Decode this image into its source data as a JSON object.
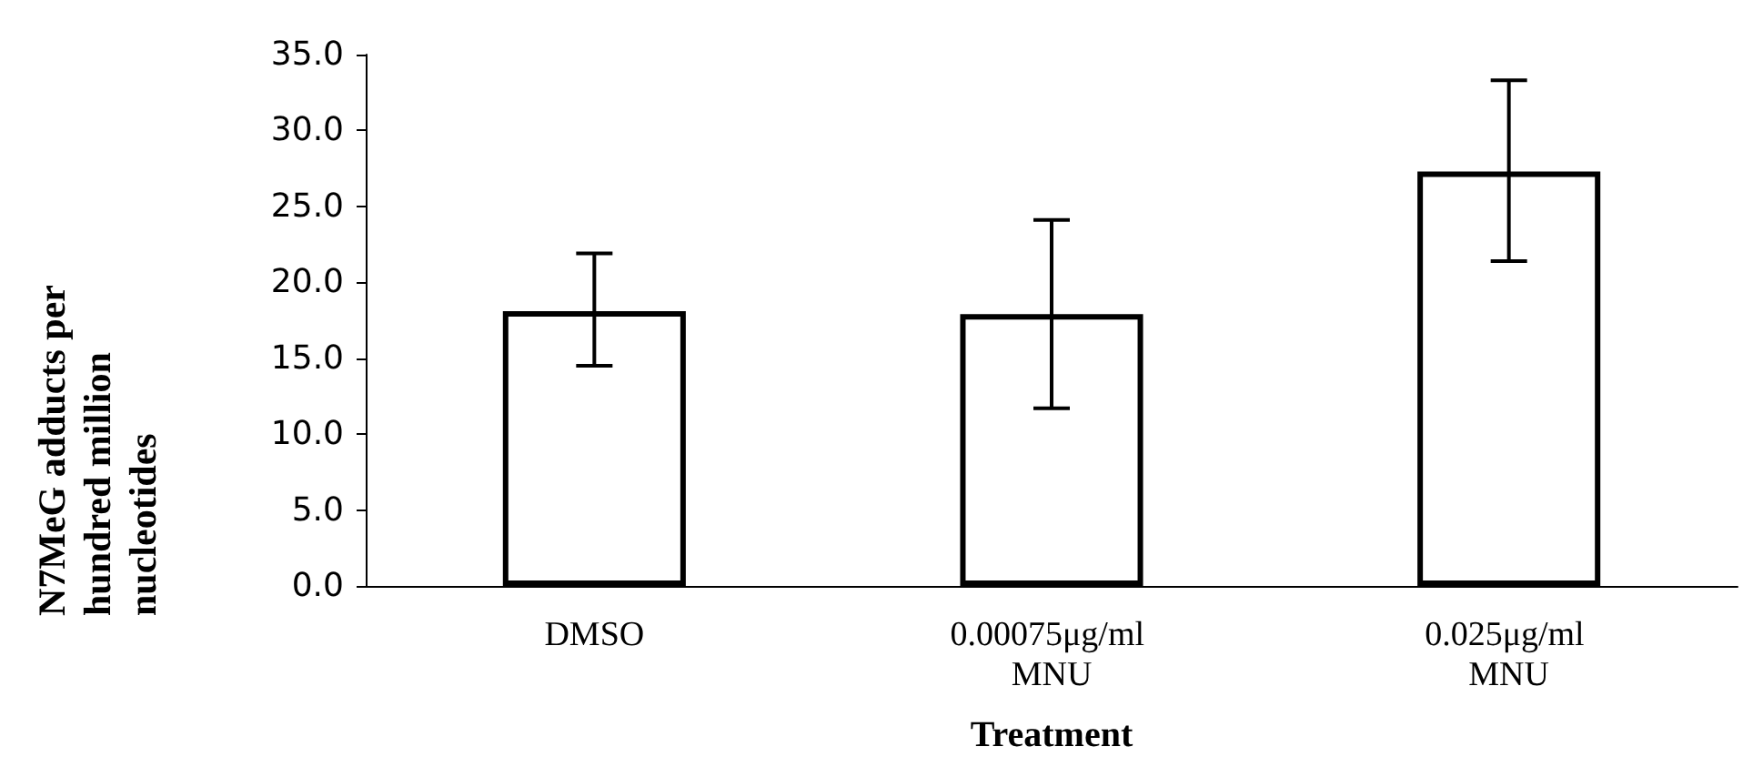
{
  "chart_data": {
    "type": "bar",
    "xlabel": "Treatment",
    "ylabel": "N7MeG adducts per hundred million nucleotides",
    "categories": [
      "DMSO",
      "0.00075μg/ml MNU",
      "0.025μg/ml MNU"
    ],
    "values": [
      18.1,
      17.9,
      27.3
    ],
    "errors": [
      [
        14.5,
        21.9
      ],
      [
        11.7,
        24.1
      ],
      [
        21.4,
        33.3
      ]
    ],
    "color": "#ffffff",
    "ylim": [
      0,
      35
    ],
    "yticks": [
      {
        "value": 0,
        "label": "0.0"
      },
      {
        "value": 5,
        "label": "5.0"
      },
      {
        "value": 10,
        "label": "10.0"
      },
      {
        "value": 15,
        "label": "15.0"
      },
      {
        "value": 20,
        "label": "20.0"
      },
      {
        "value": 25,
        "label": "25.0"
      },
      {
        "value": 30,
        "label": "30.0"
      },
      {
        "value": 35,
        "label": "35.0"
      }
    ],
    "grid": false
  }
}
